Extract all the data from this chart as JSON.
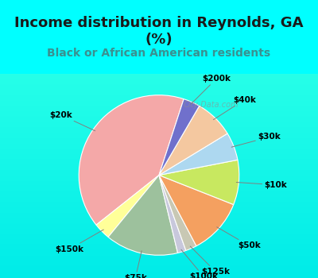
{
  "title": "Income distribution in Reynolds, GA\n(%)",
  "subtitle": "Black or African American residents",
  "background_color": "#00FFFF",
  "chart_bg_top": "#e8f5f0",
  "chart_bg_bot": "#d0eedd",
  "labels": [
    "$20k",
    "$150k",
    "$75k",
    "$100k",
    "$125k",
    "$50k",
    "$10k",
    "$30k",
    "$40k",
    "$200k"
  ],
  "sizes": [
    36,
    3,
    13,
    1.5,
    2,
    10,
    8,
    5,
    7,
    3
  ],
  "colors": [
    "#F4A8A8",
    "#FFFF99",
    "#9DC19D",
    "#C8C8DC",
    "#C8C8B4",
    "#F4A060",
    "#C8E860",
    "#ADD8F0",
    "#F4C8A0",
    "#7070CC"
  ],
  "startangle": 72,
  "title_fontsize": 13,
  "subtitle_fontsize": 10,
  "subtitle_color": "#3A9090",
  "watermark": "City-Data.com",
  "label_fontsize": 7.5
}
